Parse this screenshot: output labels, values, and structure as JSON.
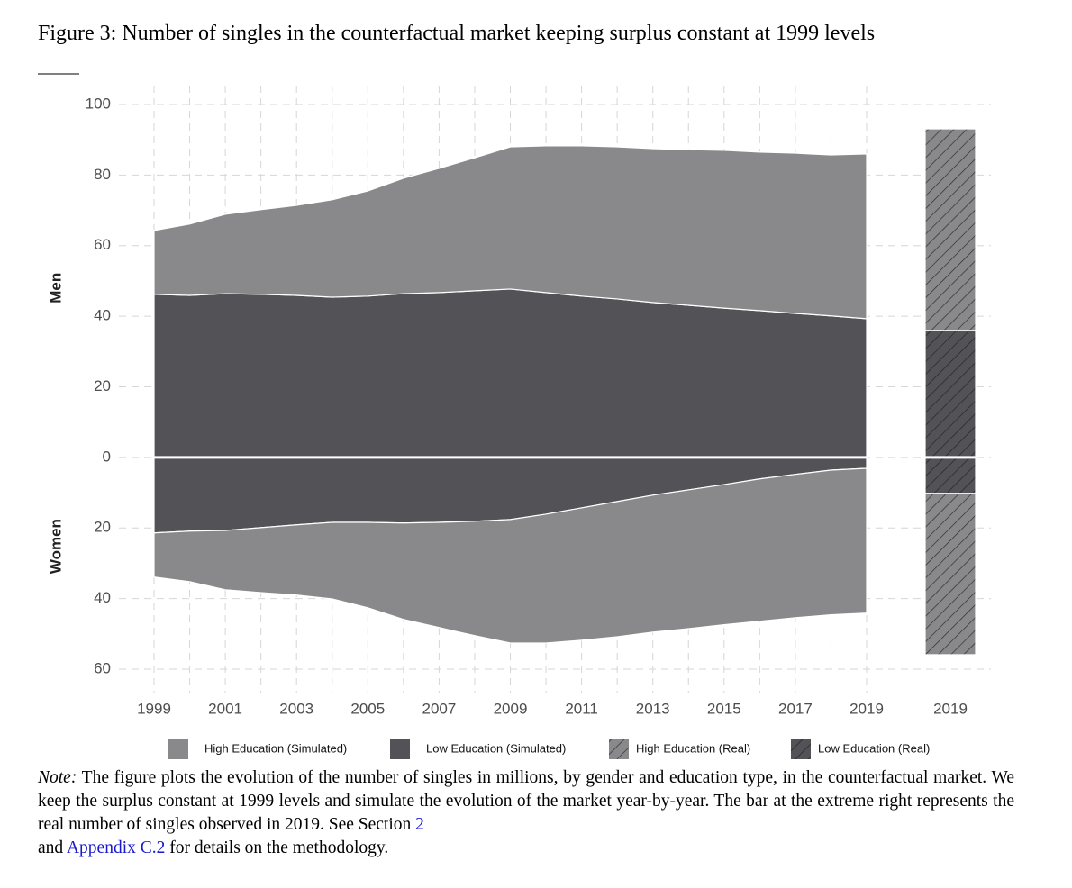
{
  "figure": {
    "title": "Figure 3: Number of singles in the counterfactual market keeping surplus constant at 1999 levels",
    "note": {
      "label": "Note:",
      "text1": "The figure plots the evolution of the number of singles in millions, by gender and education type, in the counterfactual market. We keep the surplus constant at 1999 levels and simulate the evolution of the market year-by-year. The bar at the extreme right represents the real number of singles observed in 2019. See Section",
      "link1": "2",
      "text2": "and",
      "link2": "Appendix C.2",
      "text3": "for details on the methodology."
    }
  },
  "chart_data": {
    "type": "area",
    "group_labels": [
      "Men",
      "Women"
    ],
    "x": [
      1999,
      2000,
      2001,
      2002,
      2003,
      2004,
      2005,
      2006,
      2007,
      2008,
      2009,
      2010,
      2011,
      2012,
      2013,
      2014,
      2015,
      2016,
      2017,
      2018,
      2019
    ],
    "xlim": [
      1999,
      2019
    ],
    "xticks": [
      1999,
      2001,
      2003,
      2005,
      2007,
      2009,
      2011,
      2013,
      2015,
      2017,
      2019
    ],
    "real_category": "2019",
    "ylim": [
      -60,
      100
    ],
    "yticks": [
      {
        "value": -60,
        "label": "60"
      },
      {
        "value": -40,
        "label": "40"
      },
      {
        "value": -20,
        "label": "20"
      },
      0,
      20,
      40,
      60,
      80,
      100
    ],
    "grid": true,
    "series": [
      {
        "name": "High Education (Simulated)",
        "color": "#89888b",
        "hatch": false,
        "values": [
          [
            18.1,
            20.2,
            22.5,
            24.0,
            25.5,
            27.6,
            29.8,
            32.7,
            35.2,
            37.7,
            40.3,
            41.6,
            42.6,
            43.1,
            43.6,
            44.1,
            44.7,
            44.9,
            45.4,
            45.6,
            46.7
          ],
          [
            -12.5,
            -14.3,
            -16.8,
            -18.4,
            -19.9,
            -21.7,
            -24.2,
            -27.3,
            -29.8,
            -32.4,
            -35.0,
            -36.5,
            -37.5,
            -38.3,
            -38.8,
            -39.3,
            -39.7,
            -40.3,
            -40.6,
            -41.0,
            -41.0
          ]
        ]
      },
      {
        "name": "Low Education (Simulated)",
        "color": "#535256",
        "hatch": false,
        "values": [
          [
            46.2,
            45.9,
            46.4,
            46.2,
            45.9,
            45.4,
            45.7,
            46.4,
            46.7,
            47.2,
            47.7,
            46.7,
            45.7,
            44.9,
            43.9,
            43.1,
            42.3,
            41.6,
            40.8,
            40.1,
            39.3
          ],
          [
            -21.4,
            -20.9,
            -20.7,
            -19.9,
            -19.1,
            -18.4,
            -18.4,
            -18.6,
            -18.4,
            -18.1,
            -17.6,
            -16.1,
            -14.3,
            -12.5,
            -10.7,
            -9.2,
            -7.7,
            -6.1,
            -4.8,
            -3.6,
            -3.1
          ]
        ]
      },
      {
        "name": "High Education (Real)",
        "color": "#89888b",
        "hatch": true,
        "values": [
          [
            57.1
          ],
          [
            -45.7
          ]
        ]
      },
      {
        "name": "Low Education (Real)",
        "color": "#535256",
        "hatch": true,
        "values": [
          [
            36.0
          ],
          [
            -10.2
          ]
        ]
      }
    ]
  }
}
